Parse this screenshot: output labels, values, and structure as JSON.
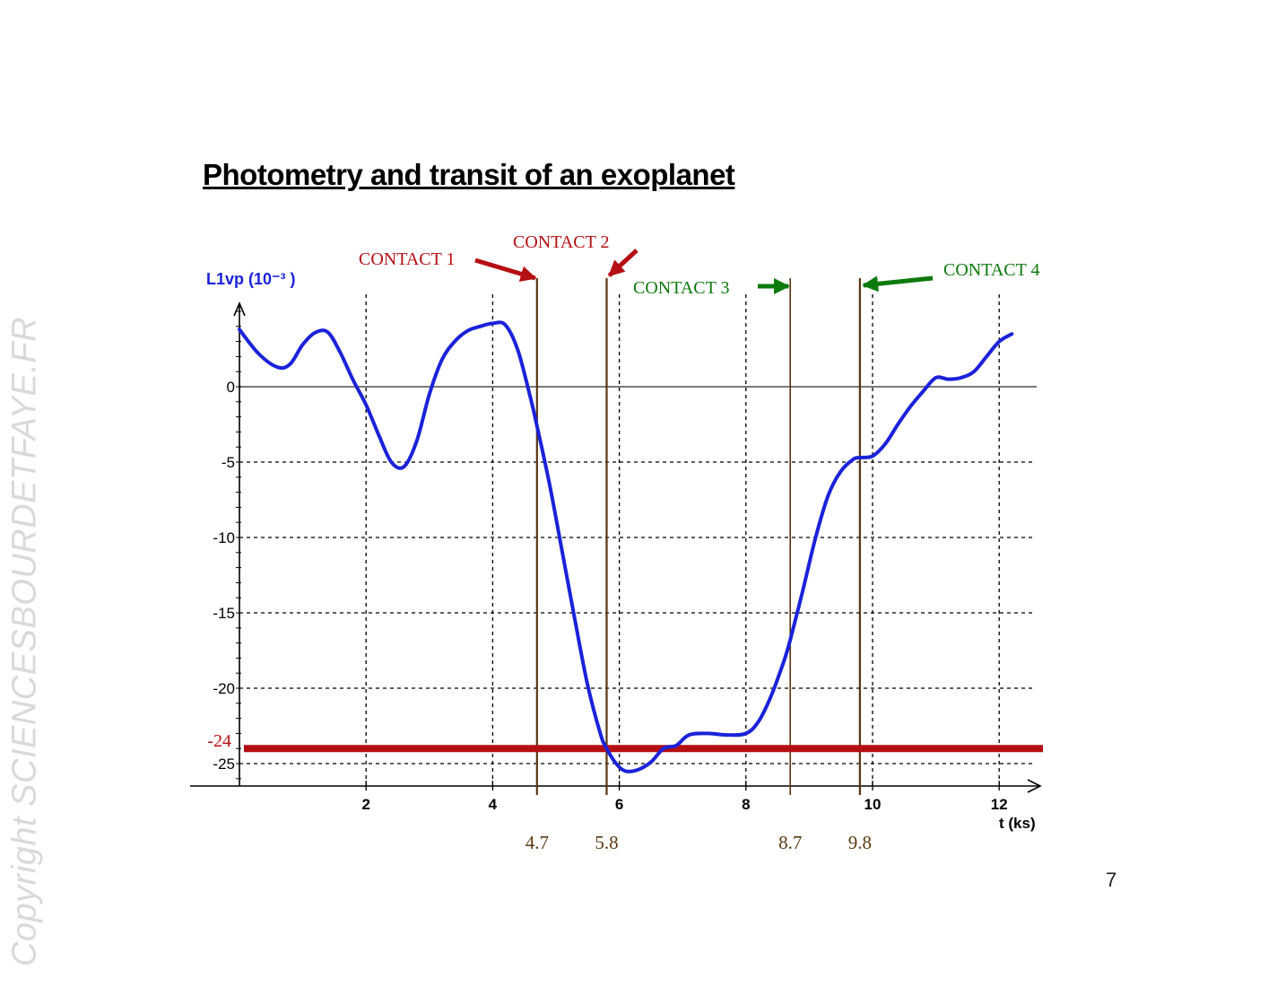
{
  "slide": {
    "title": "Photometry and transit of an exoplanet",
    "page_number": "7",
    "watermark": "Copyright SCIENCESBOURDETFAYE.FR"
  },
  "colors": {
    "curve": "#1a22d9",
    "contact_red": "#b40f12",
    "contact_green": "#0c7a0c",
    "contact_line": "#5a3412",
    "marker_text": "#5a3a10",
    "grid": "#000000",
    "zero_line": "#7a7a7a",
    "axis_label": "#1a22d9"
  },
  "chart_data": {
    "type": "line",
    "title": "",
    "xlabel": "t (ks)",
    "ylabel": "L1vp (10⁻³ )",
    "xlim": [
      0,
      12.6
    ],
    "ylim": [
      -26,
      5.5
    ],
    "x_ticks": [
      2,
      4,
      6,
      8,
      10,
      12
    ],
    "x_tick_labels": [
      "2",
      "4",
      "6",
      "8",
      "10",
      "12"
    ],
    "y_ticks": [
      0,
      -5,
      -10,
      -15,
      -20,
      -25
    ],
    "y_tick_labels": [
      "0",
      "-5",
      "-10",
      "-15",
      "-20",
      "-25"
    ],
    "grid": true,
    "series": [
      {
        "x": [
          0,
          0.3,
          0.6,
          0.8,
          1.0,
          1.2,
          1.4,
          1.6,
          1.8,
          2.0,
          2.2,
          2.4,
          2.6,
          2.8,
          3.0,
          3.2,
          3.4,
          3.6,
          3.8,
          4.0,
          4.2,
          4.4,
          4.6,
          4.7,
          4.9,
          5.1,
          5.3,
          5.5,
          5.7,
          5.8,
          5.95,
          6.1,
          6.3,
          6.5,
          6.7,
          6.9,
          7.1,
          7.4,
          7.7,
          8.0,
          8.2,
          8.4,
          8.6,
          8.7,
          8.9,
          9.1,
          9.3,
          9.5,
          9.7,
          9.8,
          10.0,
          10.2,
          10.4,
          10.6,
          10.8,
          11.0,
          11.2,
          11.4,
          11.6,
          11.8,
          12.0,
          12.2
        ],
        "y": [
          3.8,
          2.2,
          1.3,
          1.5,
          2.8,
          3.6,
          3.6,
          2.2,
          0.4,
          -1.2,
          -3.2,
          -5.0,
          -5.3,
          -3.6,
          -0.5,
          1.8,
          3.0,
          3.7,
          4.0,
          4.2,
          4.1,
          2.4,
          -0.8,
          -2.6,
          -6.5,
          -11.0,
          -15.5,
          -19.8,
          -23.0,
          -24.0,
          -25.0,
          -25.5,
          -25.4,
          -24.9,
          -24.0,
          -23.8,
          -23.1,
          -23.0,
          -23.1,
          -23.0,
          -22.2,
          -20.5,
          -18.2,
          -16.8,
          -13.5,
          -10.0,
          -7.2,
          -5.6,
          -4.8,
          -4.7,
          -4.6,
          -3.8,
          -2.5,
          -1.3,
          -0.3,
          0.6,
          0.5,
          0.6,
          1.0,
          2.0,
          3.0,
          3.5
        ]
      }
    ],
    "threshold": {
      "y": -24,
      "label": "-24"
    },
    "contacts": [
      {
        "name": "CONTACT 1",
        "t": 4.7,
        "label": "4.7",
        "color": "red"
      },
      {
        "name": "CONTACT 2",
        "t": 5.8,
        "label": "5.8",
        "color": "red"
      },
      {
        "name": "CONTACT 3",
        "t": 8.7,
        "label": "8.7",
        "color": "green"
      },
      {
        "name": "CONTACT 4",
        "t": 9.8,
        "label": "9.8",
        "color": "green"
      }
    ]
  }
}
